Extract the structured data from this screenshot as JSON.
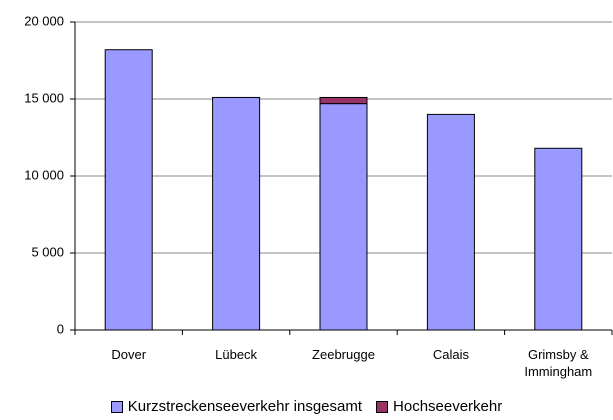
{
  "chart_data": {
    "type": "stacked-bar",
    "categories": [
      "Dover",
      "Lübeck",
      "Zeebrugge",
      "Calais",
      "Grimsby & Immingham"
    ],
    "series": [
      {
        "name": "Kurzstreckenseeverkehr insgesamt",
        "color": "#9999ff",
        "values": [
          18200,
          15100,
          14700,
          14000,
          11800
        ]
      },
      {
        "name": "Hochseeverkehr",
        "color": "#993366",
        "values": [
          0,
          0,
          400,
          0,
          0
        ]
      }
    ],
    "ylim": [
      0,
      20000
    ],
    "yticks": [
      0,
      {
        "value": 5000,
        "label": "5 000"
      },
      {
        "value": 10000,
        "label": "10 000"
      },
      {
        "value": 15000,
        "label": "15 000"
      },
      {
        "value": 20000,
        "label": "20 000"
      }
    ],
    "grid": true,
    "legend": "bottom"
  }
}
